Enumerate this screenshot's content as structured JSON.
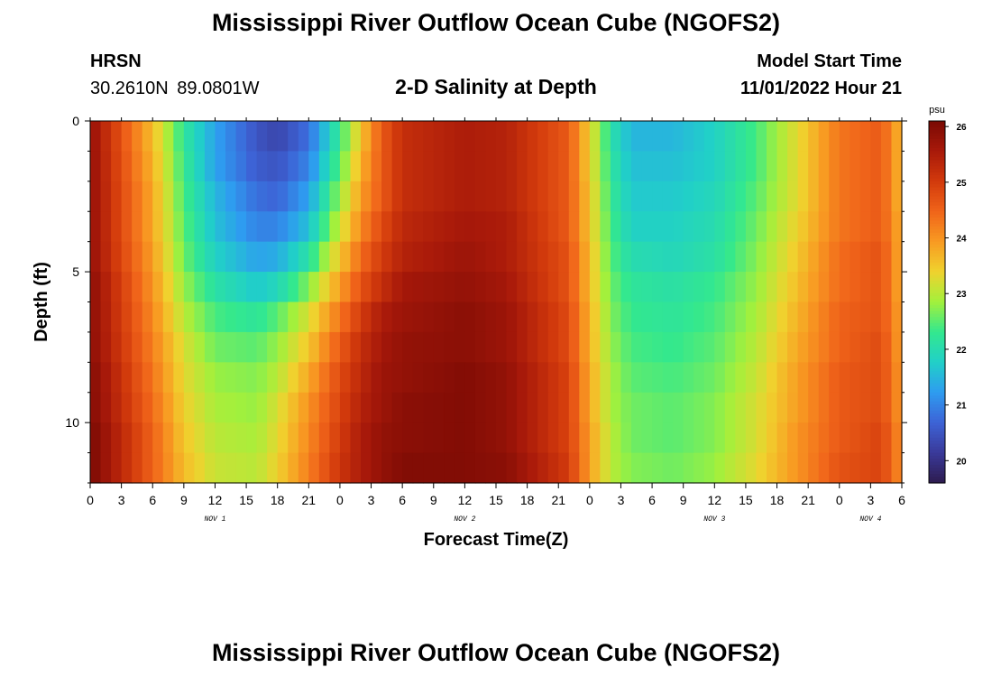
{
  "header": {
    "title": "Mississippi River Outflow Ocean Cube (NGOFS2)",
    "station": "HRSN",
    "coords": "30.2610N  89.0801W",
    "plot_title": "2-D Salinity at Depth",
    "model_start_label": "Model Start Time",
    "model_start_value": "11/01/2022 Hour 21"
  },
  "footer": {
    "title": "Mississippi River Outflow Ocean Cube (NGOFS2)"
  },
  "chart_data": {
    "type": "heatmap",
    "xlabel": "Forecast Time(Z)",
    "ylabel": "Depth (ft)",
    "xlim": [
      0,
      78
    ],
    "ylim": [
      12,
      0
    ],
    "x_tick_values": [
      0,
      3,
      6,
      9,
      12,
      15,
      18,
      21,
      24,
      27,
      30,
      33,
      36,
      39,
      42,
      45,
      48,
      51,
      54,
      57,
      60,
      63,
      66,
      69,
      72,
      75,
      78
    ],
    "x_tick_labels": [
      "0",
      "3",
      "6",
      "9",
      "12",
      "15",
      "18",
      "21",
      "0",
      "3",
      "6",
      "9",
      "12",
      "15",
      "18",
      "21",
      "0",
      "3",
      "6",
      "9",
      "12",
      "15",
      "18",
      "21",
      "0",
      "3",
      "6"
    ],
    "date_labels": [
      {
        "x": 12,
        "text": "NOV 1"
      },
      {
        "x": 36,
        "text": "NOV 2"
      },
      {
        "x": 60,
        "text": "NOV 3"
      },
      {
        "x": 75,
        "text": "NOV 4"
      }
    ],
    "y_tick_values": [
      0,
      5,
      10
    ],
    "y_tick_labels": [
      "0",
      "5",
      "10"
    ],
    "depths": [
      0.5,
      1.5,
      2.5,
      3.5,
      4.5,
      5.5,
      6.5,
      7.5,
      8.5,
      9.5,
      10.5,
      11.5
    ],
    "time_hours": [
      0,
      6,
      9,
      12,
      16,
      18,
      21,
      24,
      26,
      28,
      30,
      36,
      40,
      46,
      48,
      50,
      52,
      56,
      60,
      64,
      68,
      72,
      76,
      78
    ],
    "salinity": [
      [
        25.8,
        23.6,
        22.2,
        21.3,
        20.5,
        20.3,
        20.8,
        22.3,
        23.5,
        24.6,
        25.2,
        25.5,
        25.4,
        24.6,
        23.4,
        22.1,
        21.5,
        21.5,
        21.8,
        22.4,
        23.3,
        24.3,
        24.6,
        23.6
      ],
      [
        25.8,
        23.7,
        22.3,
        21.3,
        20.6,
        20.5,
        21.0,
        22.5,
        23.7,
        24.6,
        25.2,
        25.5,
        25.4,
        24.6,
        23.4,
        22.2,
        21.6,
        21.6,
        21.8,
        22.4,
        23.3,
        24.3,
        24.6,
        23.6
      ],
      [
        25.8,
        23.8,
        22.4,
        21.5,
        20.8,
        20.7,
        21.3,
        22.8,
        23.9,
        24.6,
        25.2,
        25.5,
        25.4,
        24.6,
        23.5,
        22.3,
        21.7,
        21.7,
        21.9,
        22.5,
        23.3,
        24.3,
        24.6,
        23.6
      ],
      [
        25.8,
        23.8,
        22.5,
        21.6,
        21.0,
        21.0,
        21.6,
        23.1,
        24.1,
        24.8,
        25.3,
        25.6,
        25.5,
        24.6,
        23.5,
        22.4,
        21.8,
        21.8,
        22.0,
        22.6,
        23.4,
        24.3,
        24.6,
        23.7
      ],
      [
        25.8,
        23.9,
        22.6,
        21.8,
        21.3,
        21.4,
        22.1,
        23.5,
        24.4,
        25.0,
        25.4,
        25.7,
        25.5,
        24.7,
        23.6,
        22.5,
        22.0,
        21.9,
        22.1,
        22.7,
        23.5,
        24.4,
        24.7,
        23.7
      ],
      [
        25.9,
        24.0,
        22.8,
        22.1,
        21.7,
        21.9,
        22.7,
        23.9,
        24.7,
        25.2,
        25.6,
        25.8,
        25.6,
        24.7,
        23.6,
        22.6,
        22.2,
        22.1,
        22.3,
        22.8,
        23.6,
        24.4,
        24.7,
        23.7
      ],
      [
        25.9,
        24.1,
        23.0,
        22.4,
        22.2,
        22.5,
        23.2,
        24.3,
        25.0,
        25.5,
        25.7,
        25.9,
        25.7,
        24.8,
        23.7,
        22.7,
        22.3,
        22.2,
        22.4,
        22.9,
        23.7,
        24.5,
        24.7,
        23.8
      ],
      [
        25.9,
        24.2,
        23.2,
        22.6,
        22.5,
        22.8,
        23.5,
        24.6,
        25.2,
        25.6,
        25.8,
        25.9,
        25.7,
        24.8,
        23.7,
        22.8,
        22.4,
        22.3,
        22.5,
        23.0,
        23.8,
        24.5,
        24.8,
        23.8
      ],
      [
        26.0,
        24.3,
        23.3,
        22.8,
        22.7,
        23.0,
        23.8,
        24.8,
        25.3,
        25.7,
        25.8,
        26.0,
        25.8,
        24.9,
        23.8,
        22.9,
        22.5,
        22.4,
        22.6,
        23.1,
        23.9,
        24.6,
        24.8,
        23.9
      ],
      [
        26.0,
        24.4,
        23.4,
        22.9,
        22.8,
        23.2,
        24.0,
        24.9,
        25.4,
        25.7,
        25.9,
        26.0,
        25.8,
        24.9,
        23.8,
        22.9,
        22.6,
        22.5,
        22.7,
        23.2,
        23.9,
        24.6,
        24.8,
        23.9
      ],
      [
        26.1,
        24.5,
        23.5,
        23.0,
        22.9,
        23.3,
        24.1,
        25.0,
        25.5,
        25.8,
        25.9,
        26.0,
        25.8,
        24.9,
        23.9,
        23.0,
        22.6,
        22.5,
        22.7,
        23.2,
        24.0,
        24.6,
        24.9,
        24.0
      ],
      [
        26.1,
        24.5,
        23.6,
        23.1,
        23.0,
        23.4,
        24.2,
        25.1,
        25.5,
        25.8,
        26.0,
        26.0,
        25.9,
        25.0,
        23.9,
        23.0,
        22.7,
        22.6,
        22.8,
        23.3,
        24.0,
        24.7,
        24.9,
        24.0
      ]
    ],
    "colorbar": {
      "unit": "psu",
      "min": 19.6,
      "max": 26.1,
      "tick_values": [
        20,
        21,
        22,
        23,
        24,
        25,
        26
      ],
      "colors": [
        "#2d1b4f",
        "#3a3a9a",
        "#3d63d6",
        "#2e9cf0",
        "#21d0c8",
        "#33e88e",
        "#a3f03c",
        "#f0d22e",
        "#f89a22",
        "#f0641a",
        "#d23a0c",
        "#a8190a",
        "#7a0a04"
      ]
    }
  }
}
